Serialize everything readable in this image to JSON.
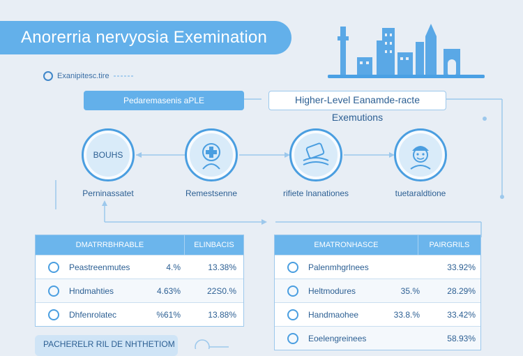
{
  "title": "Anorerria nervyosia Exemination",
  "subtitle": "Exanipitesc.tire",
  "left_banner": "Pedaremasenis aPLE",
  "right_banner": "Higher-Level Eanamde-racte Exemutions",
  "nodes": [
    {
      "label": "Perninassatet",
      "badge": "BOUHS"
    },
    {
      "label": "Remestsenne",
      "badge": ""
    },
    {
      "label": "rifiete lnanationes",
      "badge": ""
    },
    {
      "label": "tuetaraldtione",
      "badge": ""
    }
  ],
  "table_left": {
    "headers": [
      "DMATRRBHRABLE",
      "ELINBACIS"
    ],
    "rows": [
      {
        "label": "Peastreenmutes",
        "v1": "4.%",
        "v2": "13.38%"
      },
      {
        "label": "Hndmahties",
        "v1": "4.63%",
        "v2": "22S0.%"
      },
      {
        "label": "Dhfenrolatec",
        "v1": "%61%",
        "v2": "13.88%"
      }
    ]
  },
  "table_right": {
    "headers": [
      "EMATRONHASCE",
      "PAIRGRILS"
    ],
    "rows": [
      {
        "label": "Palenmhgrlnees",
        "v1": "",
        "v2": "33.92%"
      },
      {
        "label": "Heltmodures",
        "v1": "35.%",
        "v2": "28.29%"
      },
      {
        "label": "Handmaohee",
        "v1": "33.8.%",
        "v2": "33.42%"
      },
      {
        "label": "Eoelengreinees",
        "v1": "",
        "v2": "58.93%"
      }
    ]
  },
  "bottom_banner": "PACHERELR RIL DE NHTHETIOM"
}
